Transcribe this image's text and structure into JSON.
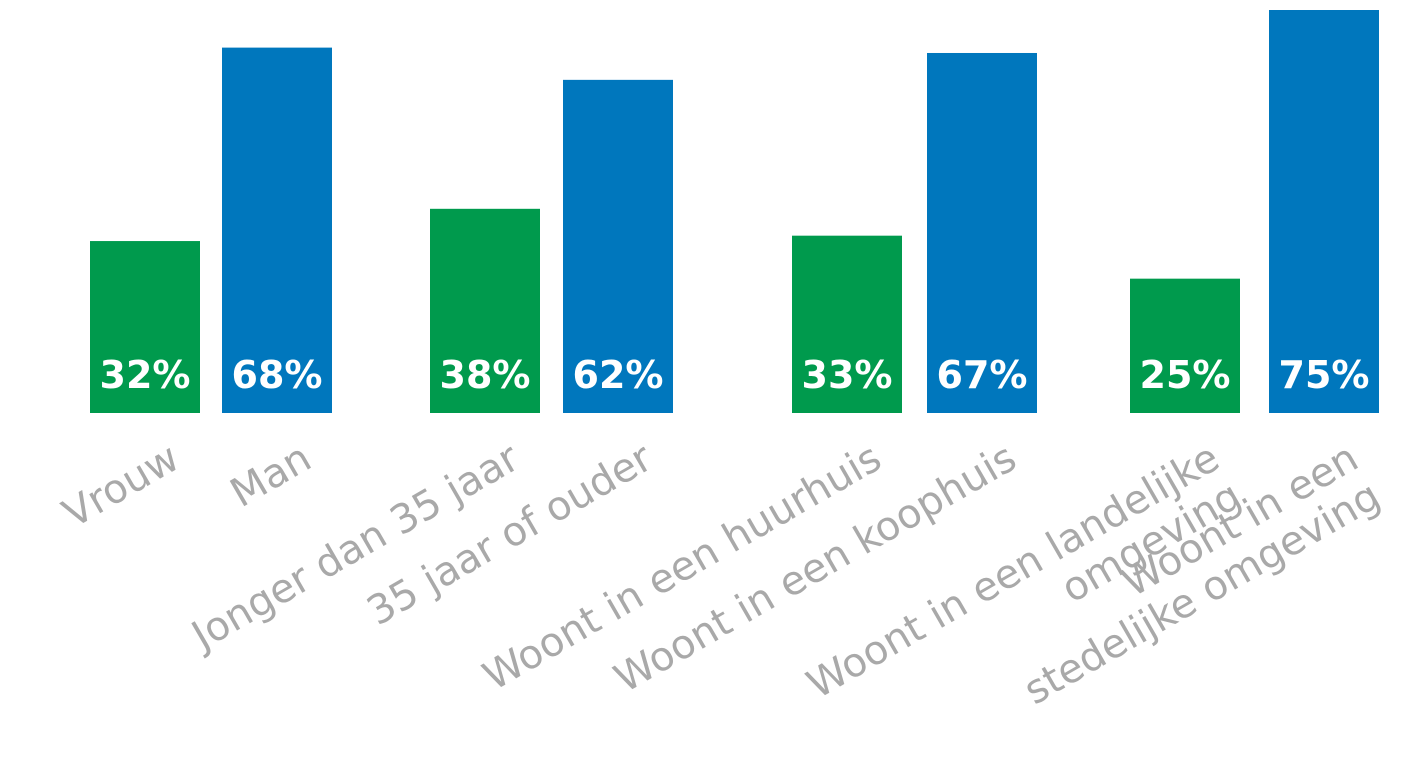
{
  "chart_data": {
    "type": "bar",
    "title": "",
    "xlabel": "",
    "ylabel": "",
    "ylim": [
      0,
      75
    ],
    "grid": false,
    "legend": "none",
    "colors": {
      "green": "#009a4d",
      "blue": "#0077bd"
    },
    "categories": [
      [
        "Vrouw"
      ],
      [
        "Man"
      ],
      [
        "Jonger dan 35 jaar"
      ],
      [
        "35 jaar of ouder"
      ],
      [
        "Woont in een huurhuis"
      ],
      [
        "Woont in een koophuis"
      ],
      [
        "Woont in een landelijke",
        "omgeving"
      ],
      [
        "Woont in een",
        "stedelijke omgeving"
      ]
    ],
    "values": [
      32,
      68,
      38,
      62,
      33,
      67,
      25,
      75
    ],
    "labels": [
      "32%",
      "68%",
      "38%",
      "62%",
      "33%",
      "67%",
      "25%",
      "75%"
    ],
    "bar_colors": [
      "green",
      "blue",
      "green",
      "blue",
      "green",
      "blue",
      "green",
      "blue"
    ]
  }
}
